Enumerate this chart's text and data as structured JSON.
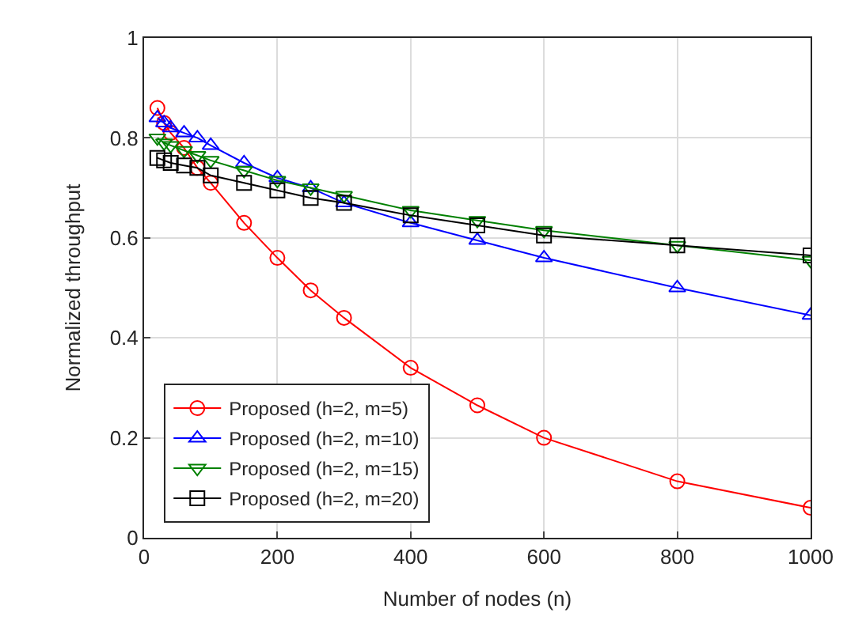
{
  "chart_data": {
    "type": "line",
    "xlabel": "Number of nodes (n)",
    "ylabel": "Normalized throughput",
    "x": [
      20,
      30,
      40,
      60,
      80,
      100,
      150,
      200,
      250,
      300,
      400,
      500,
      600,
      800,
      1000
    ],
    "xlim": [
      0,
      1000
    ],
    "xticks": [
      0,
      200,
      400,
      600,
      800,
      1000
    ],
    "ylim": [
      0,
      1
    ],
    "yticks": [
      0,
      0.2,
      0.4,
      0.6,
      0.8,
      1
    ],
    "grid": true,
    "legend": "bottom left",
    "series": [
      {
        "name": "Proposed (h=2, m=5)",
        "color": "#ff0000",
        "marker": "circle",
        "values": [
          0.86,
          0.83,
          0.81,
          0.78,
          0.74,
          0.71,
          0.63,
          0.56,
          0.495,
          0.44,
          0.34,
          0.265,
          0.2,
          0.113,
          0.06
        ]
      },
      {
        "name": "Proposed (h=2, m=10)",
        "color": "#0000ff",
        "marker": "triangle-up",
        "values": [
          0.84,
          0.83,
          0.82,
          0.81,
          0.8,
          0.785,
          0.75,
          0.72,
          0.7,
          0.67,
          0.63,
          0.595,
          0.56,
          0.5,
          0.445
        ]
      },
      {
        "name": "Proposed (h=2, m=15)",
        "color": "#008000",
        "marker": "triangle-down",
        "values": [
          0.8,
          0.79,
          0.785,
          0.775,
          0.765,
          0.755,
          0.735,
          0.715,
          0.7,
          0.685,
          0.655,
          0.635,
          0.615,
          0.585,
          0.555
        ]
      },
      {
        "name": "Proposed (h=2, m=20)",
        "color": "#000000",
        "marker": "square",
        "values": [
          0.76,
          0.755,
          0.75,
          0.745,
          0.74,
          0.725,
          0.71,
          0.695,
          0.68,
          0.67,
          0.645,
          0.625,
          0.605,
          0.585,
          0.565
        ]
      }
    ]
  }
}
